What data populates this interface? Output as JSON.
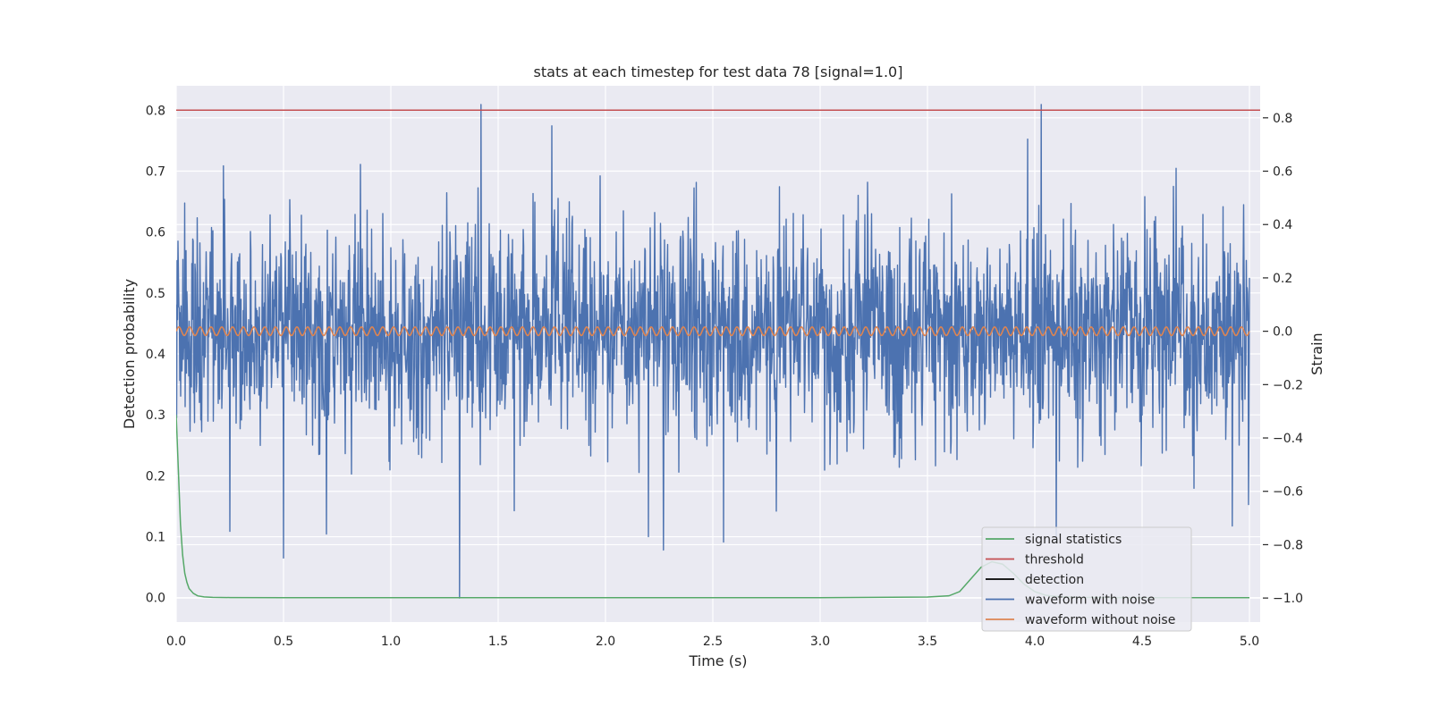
{
  "chart_data": {
    "type": "line",
    "title": "stats at each timestep for test data 78 [signal=1.0]",
    "xlabel": "Time (s)",
    "ylabel_left": "Detection probability",
    "ylabel_right": "Strain",
    "xlim": [
      0.0,
      5.05
    ],
    "ylim_left": [
      -0.04,
      0.84
    ],
    "ylim_right": [
      -1.09,
      0.92
    ],
    "x_ticks": [
      0.0,
      0.5,
      1.0,
      1.5,
      2.0,
      2.5,
      3.0,
      3.5,
      4.0,
      4.5,
      5.0
    ],
    "x_tick_labels": [
      "0.0",
      "0.5",
      "1.0",
      "1.5",
      "2.0",
      "2.5",
      "3.0",
      "3.5",
      "4.0",
      "4.5",
      "5.0"
    ],
    "y_left_ticks": [
      0.0,
      0.1,
      0.2,
      0.3,
      0.4,
      0.5,
      0.6,
      0.7,
      0.8
    ],
    "y_left_tick_labels": [
      "0.0",
      "0.1",
      "0.2",
      "0.3",
      "0.4",
      "0.5",
      "0.6",
      "0.7",
      "0.8"
    ],
    "y_right_ticks": [
      -1.0,
      -0.8,
      -0.6,
      -0.4,
      -0.2,
      0.0,
      0.2,
      0.4,
      0.6,
      0.8
    ],
    "y_right_tick_labels": [
      "−1.0",
      "−0.8",
      "−0.6",
      "−0.4",
      "−0.2",
      "0.0",
      "0.2",
      "0.4",
      "0.6",
      "0.8"
    ],
    "grid": true,
    "legend_position": "lower-right",
    "series": [
      {
        "name": "signal statistics",
        "axis": "left",
        "color": "#55a868",
        "x": [
          0.0,
          0.01,
          0.02,
          0.03,
          0.04,
          0.05,
          0.06,
          0.08,
          0.1,
          0.13,
          0.17,
          0.25,
          0.5,
          1.0,
          2.0,
          3.0,
          3.5,
          3.6,
          3.65,
          3.7,
          3.75,
          3.8,
          3.85,
          3.9,
          3.95,
          4.0,
          4.05,
          4.1,
          4.2,
          4.5,
          5.0
        ],
        "y": [
          0.3,
          0.21,
          0.12,
          0.07,
          0.04,
          0.025,
          0.015,
          0.007,
          0.003,
          0.0012,
          0.0005,
          0.0002,
          0.0,
          0.0,
          0.0,
          0.0,
          0.001,
          0.003,
          0.01,
          0.03,
          0.05,
          0.059,
          0.055,
          0.04,
          0.022,
          0.01,
          0.004,
          0.002,
          0.0005,
          0.0,
          0.0
        ]
      },
      {
        "name": "threshold",
        "axis": "left",
        "color": "#c44e52",
        "x": [
          0.0,
          5.05
        ],
        "y": [
          0.8,
          0.8
        ]
      },
      {
        "name": "detection",
        "axis": "left",
        "color": "#000000",
        "x": [],
        "y": []
      },
      {
        "name": "waveform with noise",
        "axis": "right",
        "color": "#4c72b0",
        "amplitude_std": 0.2,
        "x": [
          0.0,
          0.22,
          0.25,
          0.5,
          0.7,
          1.32,
          1.42,
          1.75,
          2.2,
          2.27,
          2.55,
          4.03,
          4.1,
          4.92,
          5.0
        ],
        "y": [
          0.1,
          0.62,
          -0.75,
          -0.85,
          -0.76,
          -1.0,
          0.85,
          0.77,
          -0.77,
          -0.82,
          -0.79,
          0.85,
          -0.79,
          -0.73,
          0.2
        ]
      },
      {
        "name": "waveform without noise",
        "axis": "right",
        "color": "#dd8452",
        "amplitude": 0.016,
        "cycles_per_second": 20,
        "x": [
          0.0,
          5.0
        ],
        "y": [
          0.0,
          0.0
        ]
      }
    ]
  }
}
